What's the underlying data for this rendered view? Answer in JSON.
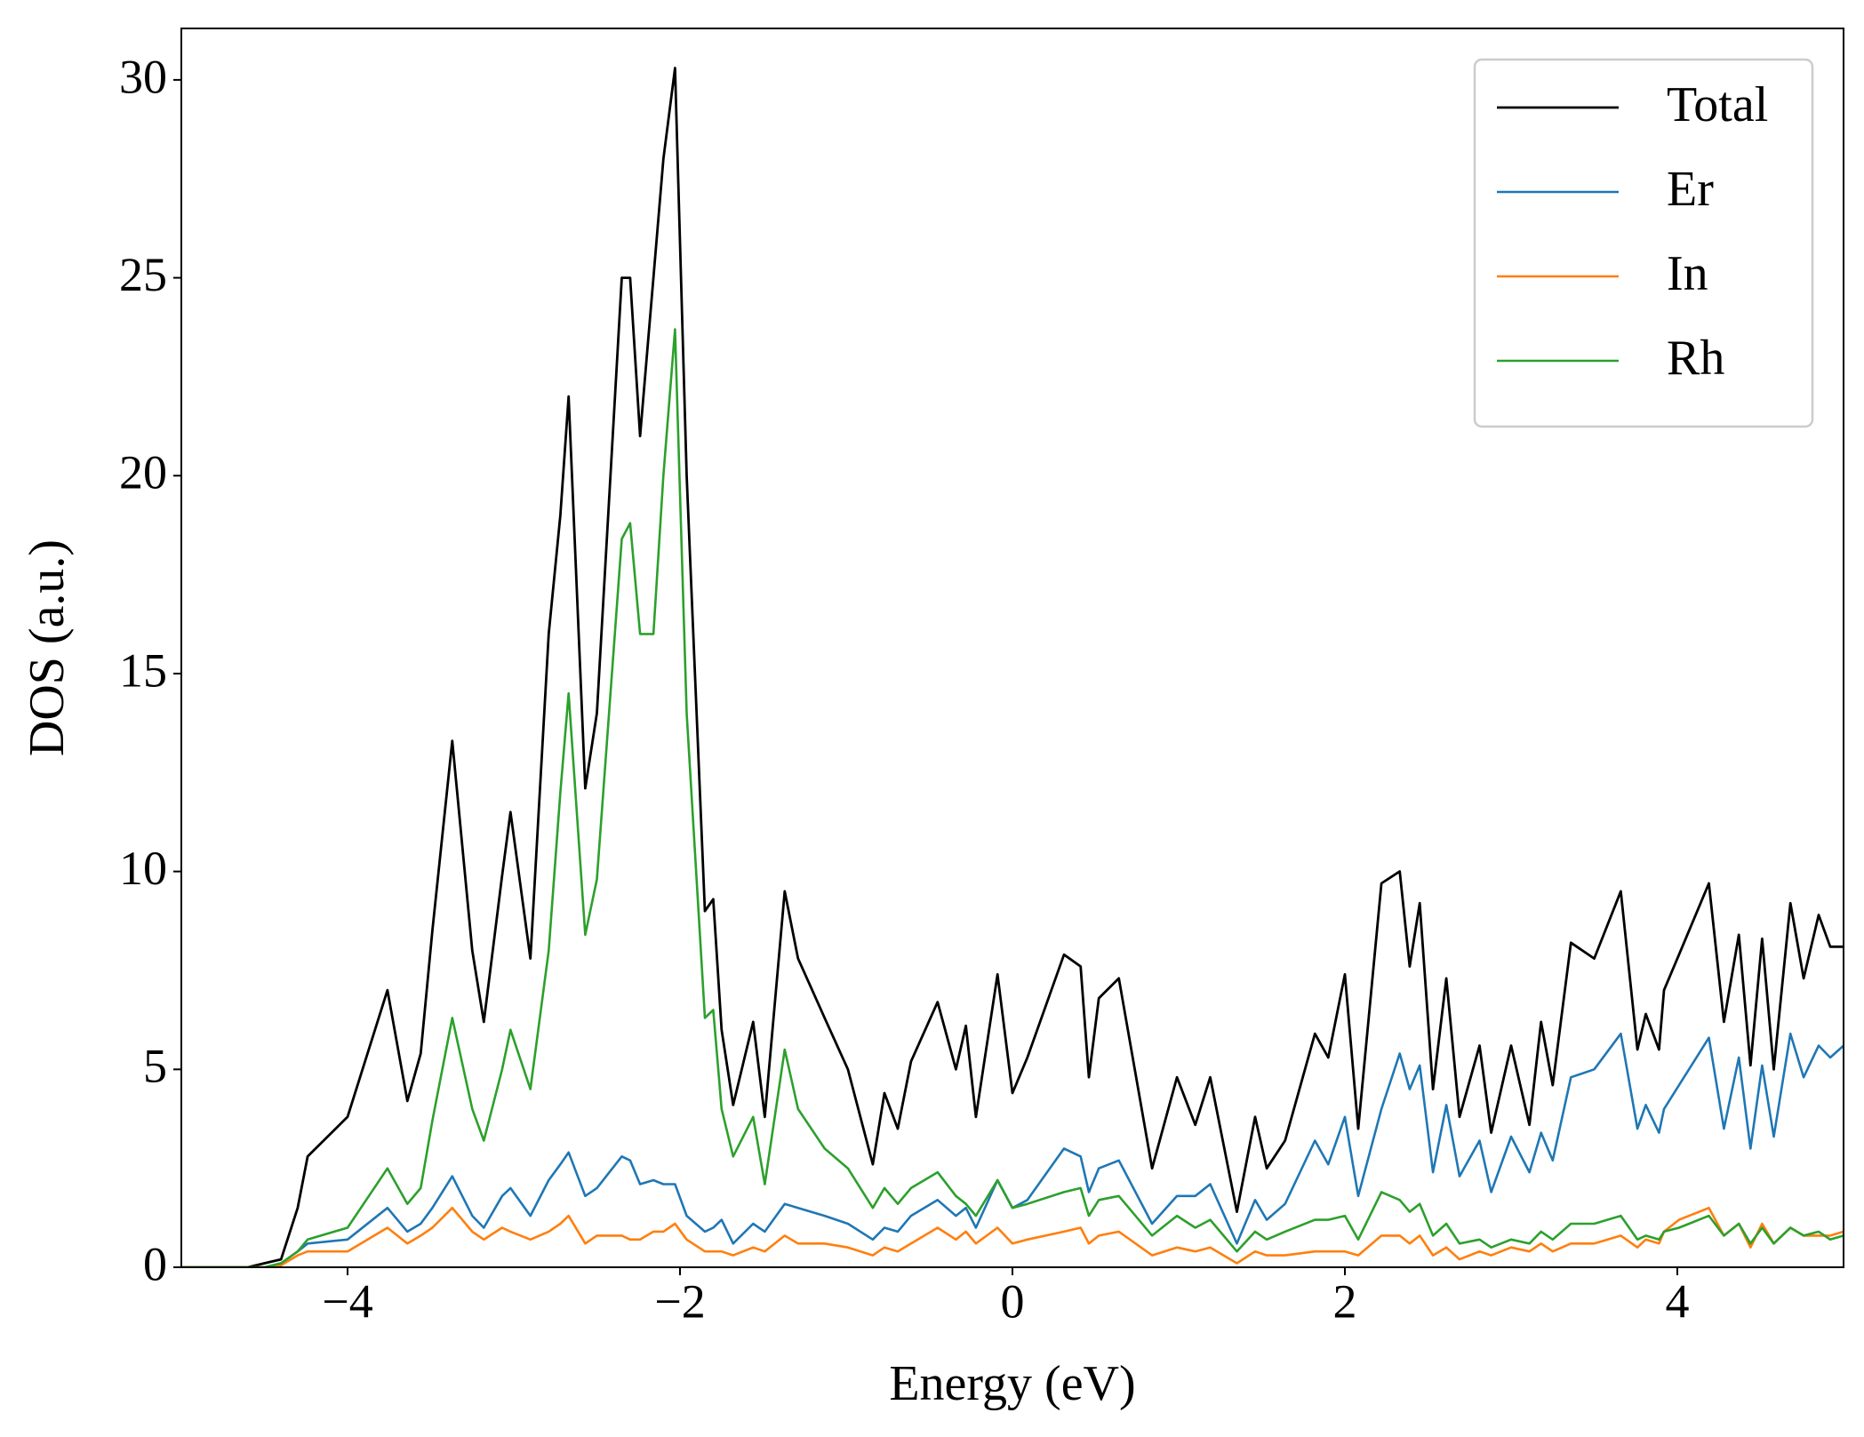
{
  "chart_data": {
    "type": "line",
    "xlabel": "Energy (eV)",
    "ylabel": "DOS (a.u.)",
    "xlim": [
      -5,
      5
    ],
    "ylim": [
      0,
      31.3
    ],
    "xticks": [
      {
        "value": -4,
        "label": "−4"
      },
      {
        "value": -2,
        "label": "−2"
      },
      0,
      2,
      4
    ],
    "yticks": [
      0,
      5,
      10,
      15,
      20,
      25,
      30
    ],
    "legend": "upper right",
    "grid": false,
    "x": [
      -5,
      -4.6,
      -4.5,
      -4.4,
      -4.3,
      -4.24,
      -4.0,
      -3.76,
      -3.64,
      -3.56,
      -3.49,
      -3.37,
      -3.25,
      -3.18,
      -3.07,
      -3.02,
      -2.9,
      -2.79,
      -2.72,
      -2.67,
      -2.57,
      -2.5,
      -2.35,
      -2.3,
      -2.24,
      -2.16,
      -2.1,
      -2.03,
      -1.96,
      -1.85,
      -1.8,
      -1.75,
      -1.68,
      -1.56,
      -1.49,
      -1.37,
      -1.29,
      -1.13,
      -0.99,
      -0.84,
      -0.77,
      -0.69,
      -0.61,
      -0.45,
      -0.34,
      -0.28,
      -0.22,
      -0.09,
      0,
      0.09,
      0.31,
      0.41,
      0.46,
      0.52,
      0.64,
      0.84,
      0.99,
      1.1,
      1.19,
      1.35,
      1.46,
      1.53,
      1.64,
      1.82,
      1.9,
      2.0,
      2.08,
      2.22,
      2.33,
      2.39,
      2.45,
      2.53,
      2.61,
      2.69,
      2.81,
      2.88,
      3.0,
      3.11,
      3.18,
      3.25,
      3.36,
      3.5,
      3.66,
      3.76,
      3.81,
      3.89,
      3.92,
      4.01,
      4.19,
      4.28,
      4.37,
      4.44,
      4.51,
      4.58,
      4.68,
      4.76,
      4.85,
      4.92,
      5.0
    ],
    "series": [
      {
        "name": "Total",
        "color": "#000000",
        "values": [
          0,
          0,
          0.1,
          0.2,
          1.5,
          2.8,
          3.8,
          7.0,
          4.2,
          5.4,
          8.5,
          13.3,
          8,
          6.2,
          9.9,
          11.5,
          7.8,
          16,
          19,
          22,
          12.1,
          14,
          25,
          25,
          21,
          25,
          28,
          30.3,
          20,
          9,
          9.3,
          6,
          4.1,
          6.2,
          3.8,
          9.5,
          7.8,
          6.3,
          5,
          2.6,
          4.4,
          3.5,
          5.2,
          6.7,
          5,
          6.1,
          3.8,
          7.4,
          4.4,
          5.3,
          7.9,
          7.6,
          4.8,
          6.8,
          7.3,
          2.5,
          4.8,
          3.6,
          4.8,
          1.4,
          3.8,
          2.5,
          3.2,
          5.9,
          5.3,
          7.4,
          3.5,
          9.7,
          10,
          7.6,
          9.2,
          4.5,
          7.3,
          3.8,
          5.6,
          3.4,
          5.6,
          3.6,
          6.2,
          4.6,
          8.2,
          7.8,
          9.5,
          5.5,
          6.4,
          5.5,
          7,
          7.9,
          9.7,
          6.2,
          8.4,
          5.1,
          8.3,
          5.0,
          9.2,
          7.3,
          8.9,
          8.1,
          8.1
        ]
      },
      {
        "name": "Er",
        "color": "#1f77b4",
        "values": [
          0,
          0,
          0,
          0.1,
          0.4,
          0.6,
          0.7,
          1.5,
          0.9,
          1.1,
          1.5,
          2.3,
          1.3,
          1.0,
          1.8,
          2.0,
          1.3,
          2.2,
          2.6,
          2.9,
          1.8,
          2.0,
          2.8,
          2.7,
          2.1,
          2.2,
          2.1,
          2.1,
          1.3,
          0.9,
          1.0,
          1.2,
          0.6,
          1.1,
          0.9,
          1.6,
          1.5,
          1.3,
          1.1,
          0.7,
          1.0,
          0.9,
          1.3,
          1.7,
          1.3,
          1.5,
          1.0,
          2.2,
          1.5,
          1.7,
          3.0,
          2.8,
          1.9,
          2.5,
          2.7,
          1.1,
          1.8,
          1.8,
          2.1,
          0.6,
          1.7,
          1.2,
          1.6,
          3.2,
          2.6,
          3.8,
          1.8,
          4.0,
          5.4,
          4.5,
          5.1,
          2.4,
          4.1,
          2.3,
          3.2,
          1.9,
          3.3,
          2.4,
          3.4,
          2.7,
          4.8,
          5.0,
          5.9,
          3.5,
          4.1,
          3.4,
          4.0,
          4.6,
          5.8,
          3.5,
          5.3,
          3.0,
          5.1,
          3.3,
          5.9,
          4.8,
          5.6,
          5.3,
          5.6
        ]
      },
      {
        "name": "In",
        "color": "#ff7f0e",
        "values": [
          0,
          0,
          0,
          0.05,
          0.3,
          0.4,
          0.4,
          1.0,
          0.6,
          0.8,
          1.0,
          1.5,
          0.9,
          0.7,
          1.0,
          0.9,
          0.7,
          0.9,
          1.1,
          1.3,
          0.6,
          0.8,
          0.8,
          0.7,
          0.7,
          0.9,
          0.9,
          1.1,
          0.7,
          0.4,
          0.4,
          0.4,
          0.3,
          0.5,
          0.4,
          0.8,
          0.6,
          0.6,
          0.5,
          0.3,
          0.5,
          0.4,
          0.6,
          1.0,
          0.7,
          0.9,
          0.6,
          1.0,
          0.6,
          0.7,
          0.9,
          1.0,
          0.6,
          0.8,
          0.9,
          0.3,
          0.5,
          0.4,
          0.5,
          0.1,
          0.4,
          0.3,
          0.3,
          0.4,
          0.4,
          0.4,
          0.3,
          0.8,
          0.8,
          0.6,
          0.8,
          0.3,
          0.5,
          0.2,
          0.4,
          0.3,
          0.5,
          0.4,
          0.6,
          0.4,
          0.6,
          0.6,
          0.8,
          0.5,
          0.7,
          0.6,
          0.9,
          1.2,
          1.5,
          0.8,
          1.1,
          0.5,
          1.1,
          0.6,
          1.0,
          0.8,
          0.8,
          0.8,
          0.9
        ]
      },
      {
        "name": "Rh",
        "color": "#2ca02c",
        "values": [
          0,
          0,
          0,
          0.1,
          0.4,
          0.7,
          1.0,
          2.5,
          1.6,
          2.0,
          3.7,
          6.3,
          4.0,
          3.2,
          5.0,
          6.0,
          4.5,
          8,
          12,
          14.5,
          8.4,
          9.8,
          18.4,
          18.8,
          16,
          16,
          20,
          23.7,
          14,
          6.3,
          6.5,
          4,
          2.8,
          3.8,
          2.1,
          5.5,
          4.0,
          3.0,
          2.5,
          1.5,
          2.0,
          1.6,
          2.0,
          2.4,
          1.8,
          1.6,
          1.3,
          2.2,
          1.5,
          1.6,
          1.9,
          2.0,
          1.3,
          1.7,
          1.8,
          0.8,
          1.3,
          1.0,
          1.2,
          0.4,
          0.9,
          0.7,
          0.9,
          1.2,
          1.2,
          1.3,
          0.7,
          1.9,
          1.7,
          1.4,
          1.6,
          0.8,
          1.1,
          0.6,
          0.7,
          0.5,
          0.7,
          0.6,
          0.9,
          0.7,
          1.1,
          1.1,
          1.3,
          0.7,
          0.8,
          0.7,
          0.9,
          1.0,
          1.3,
          0.8,
          1.1,
          0.6,
          1.0,
          0.6,
          1.0,
          0.8,
          0.9,
          0.7,
          0.8
        ]
      }
    ]
  }
}
